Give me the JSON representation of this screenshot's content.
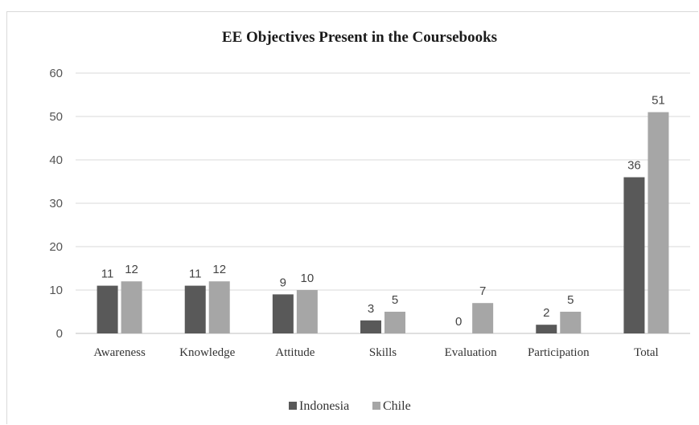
{
  "chart_data": {
    "type": "bar",
    "title": "EE Objectives Present in the Coursebooks",
    "categories": [
      "Awareness",
      "Knowledge",
      "Attitude",
      "Skills",
      "Evaluation",
      "Participation",
      "Total"
    ],
    "series": [
      {
        "name": "Indonesia",
        "color": "#595959",
        "values": [
          11,
          11,
          9,
          3,
          0,
          2,
          36
        ]
      },
      {
        "name": "Chile",
        "color": "#a6a6a6",
        "values": [
          12,
          12,
          10,
          5,
          7,
          5,
          51
        ]
      }
    ],
    "ylim": [
      0,
      60
    ],
    "yticks": [
      "0",
      "10",
      "20",
      "30",
      "40",
      "50",
      "60"
    ],
    "grid": true,
    "legend_position": "bottom",
    "data_labels": true
  }
}
